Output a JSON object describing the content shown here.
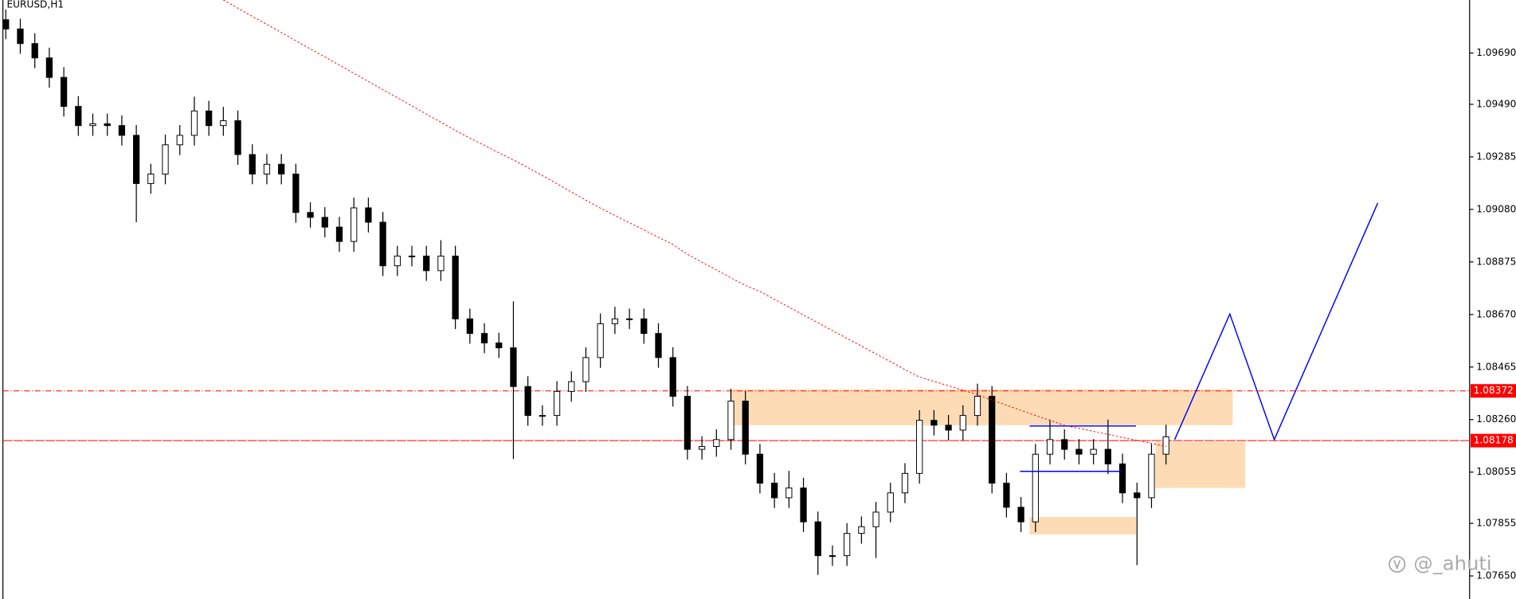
{
  "chart_data": {
    "type": "candlestick",
    "title": "EURUSD,H1",
    "watermark": "@_ahuti",
    "ylim": [
      1.0756,
      1.09897
    ],
    "yticks": [
      {
        "value": 1.0765,
        "label": "1.07650"
      },
      1.07855,
      1.08055,
      {
        "value": 1.0826,
        "label": "1.08260"
      },
      1.08465,
      {
        "value": 1.0867,
        "label": "1.08670"
      },
      1.08875,
      {
        "value": 1.0908,
        "label": "1.09080"
      },
      1.09285,
      {
        "value": 1.0949,
        "label": "1.09490"
      },
      {
        "value": 1.0969,
        "label": "1.09690"
      }
    ],
    "open": [
      1.0982,
      1.09784,
      1.09727,
      1.09671,
      1.09595,
      1.09482,
      1.09407,
      1.09414,
      1.09407,
      1.09369,
      1.09181,
      1.09218,
      1.09332,
      1.09369,
      1.09464,
      1.09407,
      1.09426,
      1.09294,
      1.09218,
      1.09256,
      1.09218,
      1.09068,
      1.09049,
      1.09011,
      1.08955,
      1.09086,
      1.0903,
      1.0886,
      1.08898,
      1.08898,
      1.08841,
      1.08898,
      1.08653,
      1.08596,
      1.08559,
      1.0854,
      1.08389,
      1.08276,
      1.08276,
      1.0837,
      1.08408,
      1.08502,
      1.08634,
      1.08653,
      1.08653,
      1.08596,
      1.08502,
      1.08351,
      1.08144,
      1.08155,
      1.08182,
      1.08332,
      1.08125,
      1.08012,
      1.07955,
      1.07993,
      1.07861,
      1.07729,
      1.07729,
      1.07816,
      1.07842,
      1.07899,
      1.07974,
      1.0805,
      1.08257,
      1.08238,
      1.08219,
      1.08276,
      1.08351,
      1.08012,
      1.07918,
      1.07861,
      1.08125,
      1.08182,
      1.08144,
      1.08125,
      1.08144,
      1.08087,
      1.07974,
      1.07955,
      1.08125
    ],
    "high": [
      1.0986,
      1.09824,
      1.09767,
      1.09711,
      1.09635,
      1.09522,
      1.09454,
      1.09454,
      1.09447,
      1.09409,
      1.09258,
      1.09372,
      1.09409,
      1.0952,
      1.09504,
      1.0948,
      1.09466,
      1.09334,
      1.09296,
      1.09296,
      1.09258,
      1.09108,
      1.09089,
      1.09051,
      1.09126,
      1.09126,
      1.0907,
      1.08938,
      1.08938,
      1.08938,
      1.0896,
      1.08938,
      1.08693,
      1.08636,
      1.08599,
      1.08721,
      1.08429,
      1.08316,
      1.0841,
      1.08448,
      1.08542,
      1.08674,
      1.087,
      1.08693,
      1.08693,
      1.08636,
      1.08542,
      1.08391,
      1.08195,
      1.08222,
      1.0838,
      1.08372,
      1.08165,
      1.08052,
      1.0806,
      1.08033,
      1.07901,
      1.07769,
      1.07856,
      1.07882,
      1.07939,
      1.08014,
      1.0809,
      1.08297,
      1.08297,
      1.08278,
      1.08316,
      1.084,
      1.08391,
      1.08052,
      1.07958,
      1.08165,
      1.0826,
      1.08222,
      1.08184,
      1.08184,
      1.0826,
      1.08127,
      1.08014,
      1.08165,
      1.0824
    ],
    "low": [
      1.09744,
      1.09687,
      1.09631,
      1.09555,
      1.09442,
      1.09367,
      1.09367,
      1.09367,
      1.09329,
      1.0903,
      1.09141,
      1.09178,
      1.09292,
      1.09329,
      1.09367,
      1.09367,
      1.09254,
      1.09178,
      1.09178,
      1.09178,
      1.09028,
      1.09009,
      1.08971,
      1.08915,
      1.08915,
      1.0899,
      1.0882,
      1.0882,
      1.08858,
      1.08801,
      1.08801,
      1.08613,
      1.08556,
      1.08519,
      1.085,
      1.08106,
      1.08236,
      1.08236,
      1.08236,
      1.0833,
      1.08368,
      1.08462,
      1.08594,
      1.08613,
      1.08556,
      1.08462,
      1.08311,
      1.08104,
      1.08104,
      1.08115,
      1.08142,
      1.08085,
      1.07972,
      1.07915,
      1.07915,
      1.07821,
      1.07654,
      1.07689,
      1.07689,
      1.07776,
      1.0772,
      1.07859,
      1.07934,
      1.0801,
      1.08198,
      1.08179,
      1.08179,
      1.08236,
      1.07972,
      1.07878,
      1.07821,
      1.07821,
      1.08085,
      1.08104,
      1.08085,
      1.08085,
      1.08047,
      1.07934,
      1.07692,
      1.07915,
      1.08085
    ],
    "close": [
      1.09784,
      1.09727,
      1.09671,
      1.09595,
      1.09482,
      1.09407,
      1.09414,
      1.09407,
      1.09369,
      1.09181,
      1.09218,
      1.09332,
      1.09369,
      1.09464,
      1.09407,
      1.09426,
      1.09294,
      1.09218,
      1.09256,
      1.09218,
      1.09068,
      1.09049,
      1.09011,
      1.08955,
      1.09086,
      1.0903,
      1.0886,
      1.08898,
      1.08898,
      1.08841,
      1.08898,
      1.08653,
      1.08596,
      1.08559,
      1.0854,
      1.08389,
      1.08276,
      1.08276,
      1.0837,
      1.08408,
      1.08502,
      1.08634,
      1.08653,
      1.08653,
      1.08596,
      1.08502,
      1.08351,
      1.08144,
      1.08155,
      1.08182,
      1.08332,
      1.08125,
      1.08012,
      1.07955,
      1.07993,
      1.07861,
      1.07729,
      1.07729,
      1.07816,
      1.07842,
      1.07899,
      1.07974,
      1.0805,
      1.08257,
      1.08238,
      1.08219,
      1.08276,
      1.08351,
      1.08012,
      1.07918,
      1.07861,
      1.08125,
      1.08182,
      1.08144,
      1.08125,
      1.08144,
      1.08087,
      1.07974,
      1.07955,
      1.08125,
      1.08193
    ],
    "ma_color": "#ff0000",
    "ma_values": [
      null,
      null,
      null,
      null,
      null,
      null,
      null,
      null,
      null,
      null,
      null,
      null,
      null,
      null,
      null,
      1.09897,
      1.09865,
      1.09833,
      1.09802,
      1.0977,
      1.09738,
      1.09706,
      1.09675,
      1.09643,
      1.09611,
      1.09579,
      1.09547,
      1.09516,
      1.09484,
      1.09452,
      1.0942,
      1.09388,
      1.09358,
      1.0933,
      1.09301,
      1.09273,
      1.09243,
      1.09212,
      1.0918,
      1.09148,
      1.09116,
      1.09085,
      1.09056,
      1.09028,
      1.09,
      1.08971,
      1.08943,
      1.08905,
      1.08874,
      1.08844,
      1.08813,
      1.08783,
      1.0876,
      1.08729,
      1.08699,
      1.08668,
      1.08638,
      1.08607,
      1.08577,
      1.08547,
      1.08516,
      1.08486,
      1.08455,
      1.08426,
      1.08409,
      1.08392,
      1.08375,
      1.08357,
      1.08336,
      1.08316,
      1.08296,
      1.08276,
      1.08257,
      1.08237,
      1.08226,
      1.08214,
      1.08202,
      1.0819,
      1.08179,
      1.08167,
      1.08155
    ],
    "levels": [
      1.08372,
      1.08178
    ],
    "level_color": "#ff0000",
    "zones": [
      [
        1.08378,
        1.08238
      ],
      [
        1.08174,
        1.07993
      ],
      [
        1.0788,
        1.07812
      ]
    ],
    "zone_color": "#fddcb5",
    "channel": [
      1.08235,
      1.08058
    ],
    "projection": [
      1.08182,
      1.08672,
      1.08182,
      1.09105
    ],
    "drawing_color": "#0000ff"
  }
}
